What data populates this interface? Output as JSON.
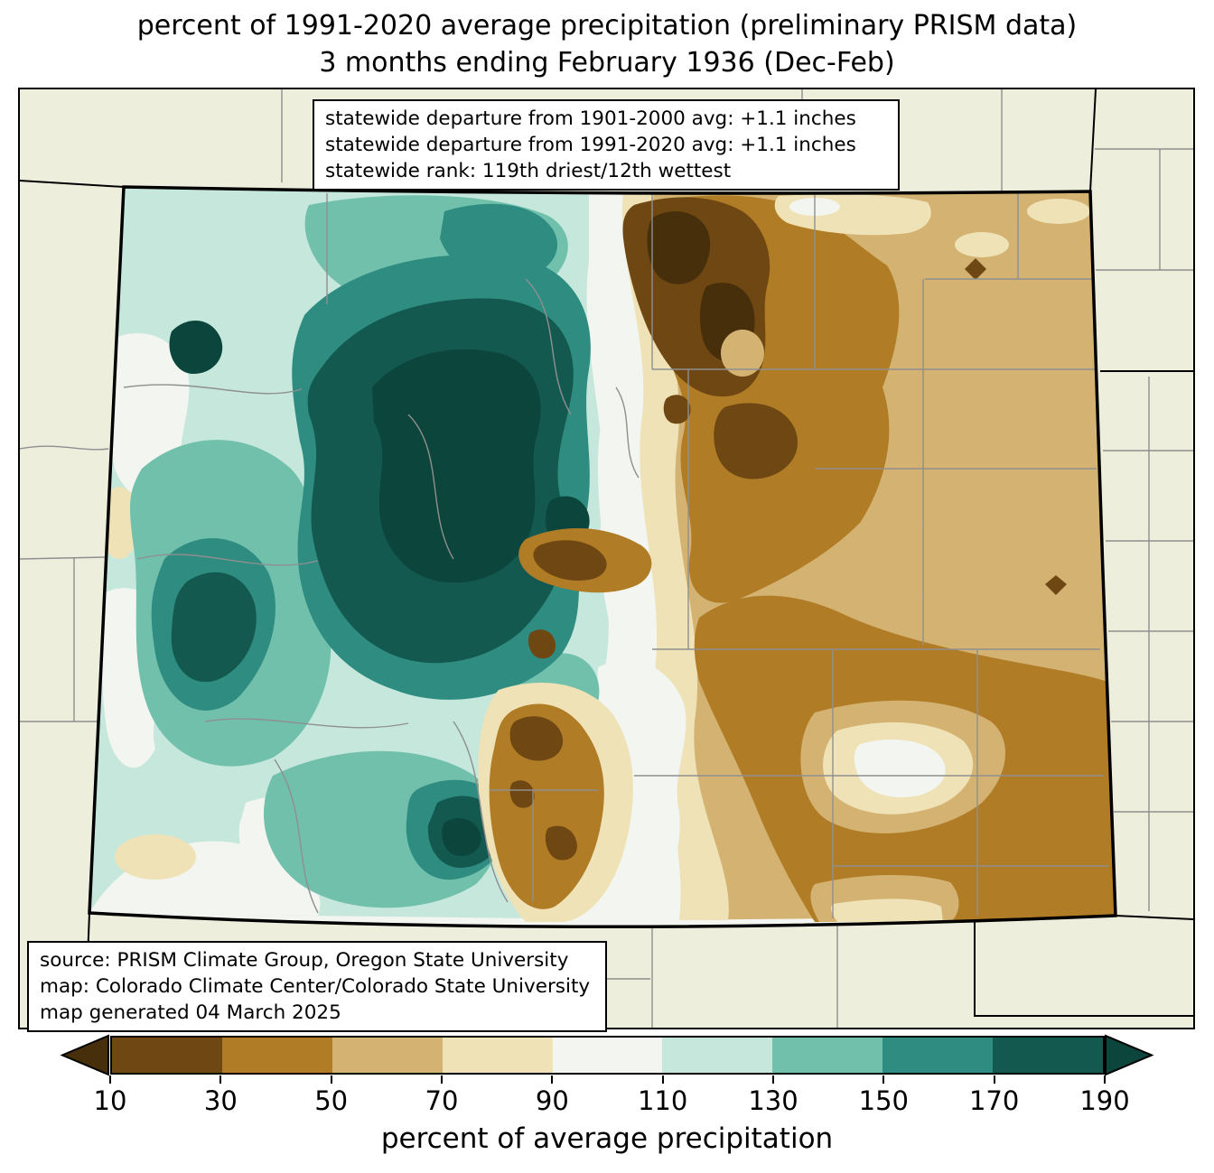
{
  "title": {
    "line1": "percent of 1991-2020 average precipitation (preliminary PRISM data)",
    "line2": "3 months ending February 1936 (Dec-Feb)"
  },
  "stats_box": {
    "lines": [
      "statewide departure from 1901-2000 avg: +1.1 inches",
      "statewide departure from 1991-2020 avg: +1.1 inches",
      "statewide rank: 119th driest/12th wettest"
    ]
  },
  "source_box": {
    "lines": [
      "source: PRISM Climate Group, Oregon State University",
      "map: Colorado Climate Center/Colorado State University",
      "map generated 04 March 2025"
    ]
  },
  "colorbar": {
    "label": "percent of average precipitation",
    "tick_labels": [
      "10",
      "30",
      "50",
      "70",
      "90",
      "110",
      "130",
      "150",
      "170",
      "190"
    ],
    "segments": [
      {
        "range": "10-30",
        "color": "#6f4712"
      },
      {
        "range": "30-50",
        "color": "#b07c26"
      },
      {
        "range": "50-70",
        "color": "#d3b272"
      },
      {
        "range": "70-90",
        "color": "#efe2b6"
      },
      {
        "range": "90-110",
        "color": "#f2f5f0"
      },
      {
        "range": "110-130",
        "color": "#c6e7dc"
      },
      {
        "range": "130-150",
        "color": "#71c0ac"
      },
      {
        "range": "150-170",
        "color": "#2e8c80"
      },
      {
        "range": "170-190",
        "color": "#13594f"
      }
    ],
    "under_arrow": {
      "range": "<10",
      "color": "#472f0c"
    },
    "over_arrow": {
      "range": ">190",
      "color": "#0c453b"
    }
  },
  "map": {
    "region": "Colorado",
    "outside_state_color": "#eeeedd",
    "county_line_color": "#8f8f8f",
    "state_border_color": "#000000",
    "wet_area_location": "western mountains (teal, above average)",
    "dry_area_location": "eastern plains (brown, below average)"
  }
}
